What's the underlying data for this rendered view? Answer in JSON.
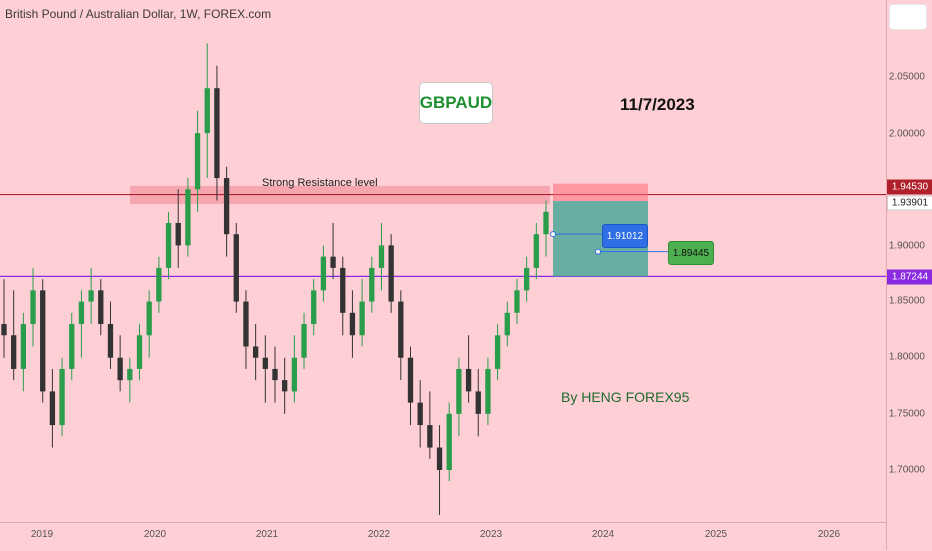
{
  "header": {
    "title": "British Pound / Australian Dollar, 1W, FOREX.com"
  },
  "annotations": {
    "ticker": "GBPAUD",
    "date": "11/7/2023",
    "signature": "By HENG FOREX95",
    "resistance_label": "Strong Resistance level"
  },
  "price_axis": {
    "ticks": [
      "2.05000",
      "2.00000",
      "1.95000",
      "1.90000",
      "1.85000",
      "1.80000",
      "1.75000",
      "1.70000"
    ],
    "badges": {
      "resistance": "1.94530",
      "current": "1.93901",
      "support": "1.87244"
    }
  },
  "time_axis": {
    "labels": [
      "2019",
      "2020",
      "2021",
      "2022",
      "2023",
      "2024",
      "2025",
      "2026"
    ]
  },
  "position": {
    "entry": "1.91012",
    "target": "1.89445"
  },
  "colors": {
    "background": "#ffcfd6",
    "resistance": "#b0202a",
    "support": "#8a2be2",
    "target_zone": "#4ea89a",
    "stop_zone": "#ff6b7a"
  },
  "chart_data": {
    "type": "candlestick",
    "symbol": "GBPAUD",
    "interval": "1W",
    "x_range": [
      "2018-09",
      "2026-09"
    ],
    "ylim": [
      1.66,
      2.105
    ],
    "levels": {
      "resistance": 1.9453,
      "support": 1.87244,
      "current": 1.93901
    },
    "resistance_zone": [
      1.937,
      1.953
    ],
    "long_position": {
      "entry": 1.91012,
      "target": 1.89445,
      "stop_top": 1.955,
      "stop_bottom": 1.9395,
      "zone_bottom": 1.8724
    },
    "series": [
      {
        "values": [
          [
            1.83,
            1.87,
            1.8,
            1.82
          ],
          [
            1.82,
            1.86,
            1.78,
            1.79
          ],
          [
            1.79,
            1.84,
            1.77,
            1.83
          ],
          [
            1.83,
            1.88,
            1.81,
            1.86
          ],
          [
            1.86,
            1.87,
            1.76,
            1.77
          ],
          [
            1.77,
            1.79,
            1.72,
            1.74
          ],
          [
            1.74,
            1.8,
            1.73,
            1.79
          ],
          [
            1.79,
            1.84,
            1.78,
            1.83
          ],
          [
            1.83,
            1.86,
            1.8,
            1.85
          ],
          [
            1.85,
            1.88,
            1.83,
            1.86
          ],
          [
            1.86,
            1.87,
            1.82,
            1.83
          ],
          [
            1.83,
            1.85,
            1.79,
            1.8
          ],
          [
            1.8,
            1.82,
            1.77,
            1.78
          ],
          [
            1.78,
            1.8,
            1.76,
            1.79
          ],
          [
            1.79,
            1.83,
            1.78,
            1.82
          ],
          [
            1.82,
            1.86,
            1.8,
            1.85
          ],
          [
            1.85,
            1.89,
            1.84,
            1.88
          ],
          [
            1.88,
            1.93,
            1.87,
            1.92
          ],
          [
            1.92,
            1.95,
            1.88,
            1.9
          ],
          [
            1.9,
            1.96,
            1.89,
            1.95
          ],
          [
            1.95,
            2.02,
            1.93,
            2.0
          ],
          [
            2.0,
            2.08,
            1.96,
            2.04
          ],
          [
            2.04,
            2.06,
            1.94,
            1.96
          ],
          [
            1.96,
            1.97,
            1.89,
            1.91
          ],
          [
            1.91,
            1.92,
            1.84,
            1.85
          ],
          [
            1.85,
            1.86,
            1.79,
            1.81
          ],
          [
            1.81,
            1.83,
            1.78,
            1.8
          ],
          [
            1.8,
            1.82,
            1.76,
            1.79
          ],
          [
            1.79,
            1.81,
            1.76,
            1.78
          ],
          [
            1.78,
            1.8,
            1.75,
            1.77
          ],
          [
            1.77,
            1.82,
            1.76,
            1.8
          ],
          [
            1.8,
            1.84,
            1.79,
            1.83
          ],
          [
            1.83,
            1.87,
            1.82,
            1.86
          ],
          [
            1.86,
            1.9,
            1.85,
            1.89
          ],
          [
            1.89,
            1.92,
            1.87,
            1.88
          ],
          [
            1.88,
            1.89,
            1.82,
            1.84
          ],
          [
            1.84,
            1.86,
            1.8,
            1.82
          ],
          [
            1.82,
            1.87,
            1.81,
            1.85
          ],
          [
            1.85,
            1.89,
            1.84,
            1.88
          ],
          [
            1.88,
            1.92,
            1.86,
            1.9
          ],
          [
            1.9,
            1.91,
            1.84,
            1.85
          ],
          [
            1.85,
            1.86,
            1.78,
            1.8
          ],
          [
            1.8,
            1.81,
            1.74,
            1.76
          ],
          [
            1.76,
            1.78,
            1.72,
            1.74
          ],
          [
            1.74,
            1.77,
            1.71,
            1.72
          ],
          [
            1.72,
            1.74,
            1.66,
            1.7
          ],
          [
            1.7,
            1.76,
            1.69,
            1.75
          ],
          [
            1.75,
            1.8,
            1.73,
            1.79
          ],
          [
            1.79,
            1.82,
            1.76,
            1.77
          ],
          [
            1.77,
            1.79,
            1.73,
            1.75
          ],
          [
            1.75,
            1.8,
            1.74,
            1.79
          ],
          [
            1.79,
            1.83,
            1.78,
            1.82
          ],
          [
            1.82,
            1.85,
            1.81,
            1.84
          ],
          [
            1.84,
            1.87,
            1.83,
            1.86
          ],
          [
            1.86,
            1.89,
            1.85,
            1.88
          ],
          [
            1.88,
            1.92,
            1.87,
            1.91
          ],
          [
            1.91,
            1.94,
            1.89,
            1.93
          ]
        ]
      }
    ]
  }
}
